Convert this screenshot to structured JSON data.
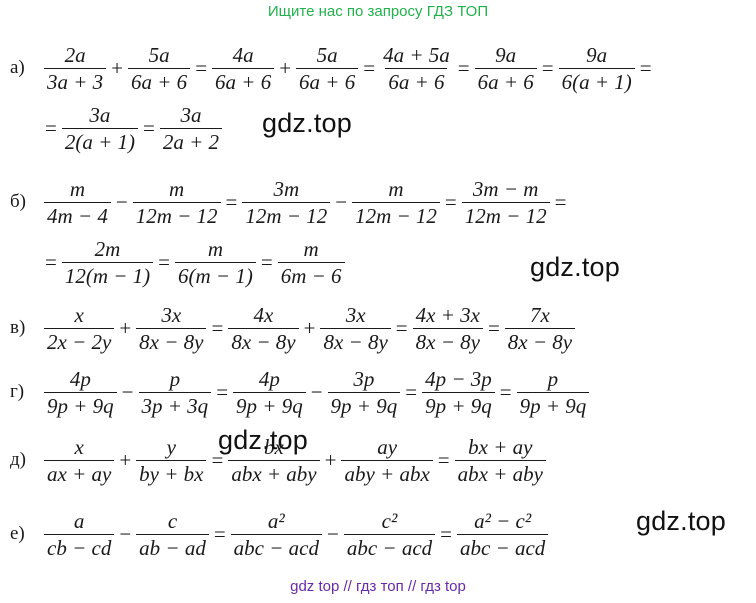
{
  "header": "Ищите нас по запросу ГДЗ ТОП",
  "footer": "gdz top  //  гдз топ  //  гдз top",
  "watermarks": [
    "gdz.top",
    "gdz.top",
    "gdz.top",
    "gdz.top"
  ],
  "rows": [
    {
      "label": "а)",
      "items": [
        {
          "n": "2a",
          "d": "3a + 3"
        },
        {
          "op": "+"
        },
        {
          "n": "5a",
          "d": "6a + 6"
        },
        {
          "op": "="
        },
        {
          "n": "4a",
          "d": "6a + 6"
        },
        {
          "op": "+"
        },
        {
          "n": "5a",
          "d": "6a + 6"
        },
        {
          "op": "="
        },
        {
          "n": "4a + 5a",
          "d": "6a + 6"
        },
        {
          "op": "="
        },
        {
          "n": "9a",
          "d": "6a + 6"
        },
        {
          "op": "="
        },
        {
          "n": "9a",
          "d": "6(a + 1)"
        },
        {
          "op": "="
        }
      ]
    },
    {
      "label": "",
      "items": [
        {
          "op": "="
        },
        {
          "n": "3a",
          "d": "2(a + 1)"
        },
        {
          "op": "="
        },
        {
          "n": "3a",
          "d": "2a + 2"
        }
      ]
    },
    {
      "label": "б)",
      "items": [
        {
          "n": "m",
          "d": "4m − 4"
        },
        {
          "op": "−"
        },
        {
          "n": "m",
          "d": "12m − 12"
        },
        {
          "op": "="
        },
        {
          "n": "3m",
          "d": "12m − 12"
        },
        {
          "op": "−"
        },
        {
          "n": "m",
          "d": "12m − 12"
        },
        {
          "op": "="
        },
        {
          "n": "3m − m",
          "d": "12m − 12"
        },
        {
          "op": "="
        }
      ]
    },
    {
      "label": "",
      "items": [
        {
          "op": "="
        },
        {
          "n": "2m",
          "d": "12(m − 1)"
        },
        {
          "op": "="
        },
        {
          "n": "m",
          "d": "6(m − 1)"
        },
        {
          "op": "="
        },
        {
          "n": "m",
          "d": "6m − 6"
        }
      ]
    },
    {
      "label": "в)",
      "items": [
        {
          "n": "x",
          "d": "2x − 2y"
        },
        {
          "op": "+"
        },
        {
          "n": "3x",
          "d": "8x − 8y"
        },
        {
          "op": "="
        },
        {
          "n": "4x",
          "d": "8x − 8y"
        },
        {
          "op": "+"
        },
        {
          "n": "3x",
          "d": "8x − 8y"
        },
        {
          "op": "="
        },
        {
          "n": "4x + 3x",
          "d": "8x − 8y"
        },
        {
          "op": "="
        },
        {
          "n": "7x",
          "d": "8x − 8y"
        }
      ]
    },
    {
      "label": "г)",
      "items": [
        {
          "n": "4p",
          "d": "9p + 9q"
        },
        {
          "op": "−"
        },
        {
          "n": "p",
          "d": "3p + 3q"
        },
        {
          "op": "="
        },
        {
          "n": "4p",
          "d": "9p + 9q"
        },
        {
          "op": "−"
        },
        {
          "n": "3p",
          "d": "9p + 9q"
        },
        {
          "op": "="
        },
        {
          "n": "4p − 3p",
          "d": "9p + 9q"
        },
        {
          "op": "="
        },
        {
          "n": "p",
          "d": "9p + 9q"
        }
      ]
    },
    {
      "label": "д)",
      "items": [
        {
          "n": "x",
          "d": "ax + ay"
        },
        {
          "op": "+"
        },
        {
          "n": "y",
          "d": "by + bx"
        },
        {
          "op": "="
        },
        {
          "n": "bx",
          "d": "abx + aby"
        },
        {
          "op": "+"
        },
        {
          "n": "ay",
          "d": "aby + abx"
        },
        {
          "op": "="
        },
        {
          "n": "bx + ay",
          "d": "abx + aby"
        }
      ]
    },
    {
      "label": "е)",
      "items": [
        {
          "n": "a",
          "d": "cb − cd"
        },
        {
          "op": "−"
        },
        {
          "n": "c",
          "d": "ab − ad"
        },
        {
          "op": "="
        },
        {
          "n": "a²",
          "d": "abc − acd"
        },
        {
          "op": "−"
        },
        {
          "n": "c²",
          "d": "abc − acd"
        },
        {
          "op": "="
        },
        {
          "n": "a² − c²",
          "d": "abc − acd"
        }
      ]
    }
  ]
}
